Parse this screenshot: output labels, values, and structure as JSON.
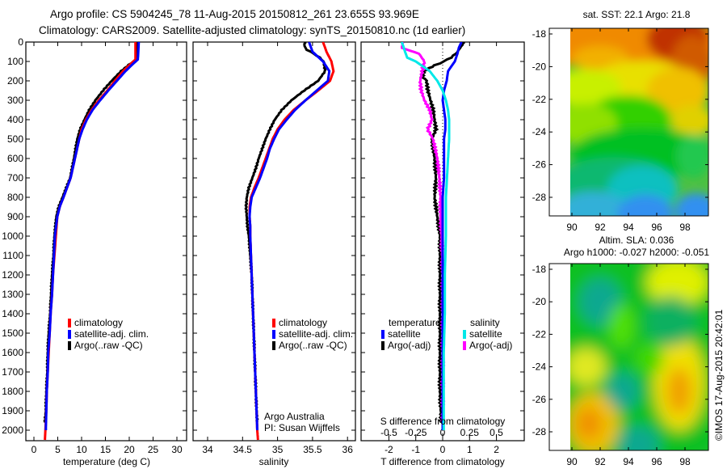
{
  "title": {
    "line1": "Argo profile: CS 5904245_78 11-Aug-2015 20150812_261 23.655S 93.969E",
    "line2": "Climatology: CARS2009. Satellite-adjusted climatology: synTS_20150810.nc (1d earlier)"
  },
  "colors": {
    "climatology": "#ff0000",
    "satellite_adj": "#0000ff",
    "argo": "#000000",
    "s_satellite": "#00e8e8",
    "s_argo": "#ff00ff"
  },
  "chart_data": [
    {
      "id": "temperature",
      "type": "line",
      "xlabel": "temperature (deg C)",
      "ylabel": "",
      "xlim": [
        -2.5,
        32
      ],
      "ylim": [
        2060,
        0
      ],
      "xticks": [
        0,
        5,
        10,
        15,
        20,
        25,
        30
      ],
      "yticks": [
        0,
        100,
        200,
        300,
        400,
        500,
        600,
        700,
        800,
        900,
        1000,
        1100,
        1200,
        1300,
        1400,
        1500,
        1600,
        1700,
        1800,
        1900,
        2000
      ],
      "legend": [
        "climatology",
        "satellite-adj. clim.",
        "Argo(..raw -QC)"
      ],
      "series": [
        {
          "name": "climatology",
          "color": "#ff0000",
          "depth": [
            0,
            50,
            90,
            110,
            150,
            200,
            250,
            300,
            350,
            400,
            450,
            500,
            600,
            700,
            800,
            850,
            900,
            1000,
            1100,
            1200,
            1300,
            1400,
            1500,
            1600,
            1700,
            1800,
            1900,
            2000,
            2050
          ],
          "values": [
            21.3,
            21.3,
            21.3,
            20.4,
            18.7,
            17.0,
            15.4,
            13.6,
            12.1,
            10.9,
            10.0,
            9.5,
            8.6,
            7.7,
            6.2,
            5.4,
            4.9,
            4.6,
            4.3,
            4.0,
            3.8,
            3.5,
            3.3,
            3.1,
            2.9,
            2.7,
            2.6,
            2.4,
            2.3
          ]
        },
        {
          "name": "satellite-adj. clim.",
          "color": "#0000ff",
          "depth": [
            0,
            50,
            90,
            110,
            150,
            200,
            250,
            300,
            350,
            400,
            450,
            500,
            600,
            700,
            800,
            850,
            900,
            1000,
            1100,
            1200,
            1300,
            1400,
            1500,
            1600,
            1700,
            1800,
            1900,
            2000
          ],
          "values": [
            22.0,
            21.9,
            21.8,
            20.9,
            19.2,
            17.4,
            15.6,
            13.9,
            12.3,
            11.1,
            10.2,
            9.5,
            8.6,
            7.7,
            6.2,
            5.4,
            4.9,
            4.4,
            4.2,
            4.0,
            3.8,
            3.5,
            3.3,
            3.0,
            2.9,
            2.7,
            2.6,
            2.5
          ]
        },
        {
          "name": "Argo(..raw -QC)",
          "color": "#000000",
          "depth": [
            0,
            50,
            90,
            110,
            150,
            200,
            250,
            300,
            350,
            400,
            450,
            500,
            600,
            700,
            800,
            850,
            900,
            1000,
            1100,
            1200,
            1300,
            1400,
            1500,
            1600,
            1700,
            1800,
            1900,
            1960
          ],
          "values": [
            21.7,
            21.6,
            21.5,
            20.3,
            18.3,
            16.3,
            14.5,
            12.9,
            11.6,
            10.6,
            9.7,
            9.1,
            8.4,
            7.6,
            6.0,
            5.2,
            4.7,
            4.3,
            4.1,
            3.8,
            3.6,
            3.4,
            3.1,
            2.9,
            2.8,
            2.6,
            2.5,
            2.3
          ]
        }
      ]
    },
    {
      "id": "salinity",
      "type": "line",
      "xlabel": "salinity",
      "xlim": [
        33.8,
        36.1
      ],
      "ylim": [
        2060,
        0
      ],
      "xticks": [
        34,
        34.5,
        35,
        35.5,
        36
      ],
      "xticklabels": [
        "34",
        "34.5",
        "35",
        "35.5",
        "36"
      ],
      "legend": [
        "climatology",
        "satellite-adj. clim.",
        "Argo(..raw -QC)"
      ],
      "annotation": [
        "Argo Australia",
        "PI: Susan Wijffels"
      ],
      "series": [
        {
          "name": "climatology",
          "color": "#ff0000",
          "depth": [
            0,
            50,
            100,
            150,
            200,
            250,
            300,
            350,
            400,
            450,
            500,
            550,
            600,
            650,
            700,
            750,
            800,
            850,
            900,
            950,
            1000,
            1100,
            1200,
            1300,
            1400,
            1500,
            1600,
            1700,
            1800,
            1900,
            2000,
            2050
          ],
          "values": [
            35.65,
            35.7,
            35.77,
            35.8,
            35.75,
            35.58,
            35.4,
            35.23,
            35.1,
            35.0,
            34.93,
            34.88,
            34.83,
            34.78,
            34.73,
            34.67,
            34.62,
            34.6,
            34.6,
            34.61,
            34.61,
            34.62,
            34.63,
            34.64,
            34.65,
            34.66,
            34.67,
            34.68,
            34.69,
            34.7,
            34.71,
            34.72
          ]
        },
        {
          "name": "satellite-adj. clim.",
          "color": "#0000ff",
          "depth": [
            0,
            50,
            100,
            150,
            200,
            250,
            300,
            350,
            400,
            450,
            500,
            550,
            600,
            650,
            700,
            750,
            800,
            850,
            900,
            950,
            1000,
            1100,
            1200,
            1300,
            1400,
            1500,
            1600,
            1700,
            1800,
            1900,
            2000
          ],
          "values": [
            35.45,
            35.5,
            35.65,
            35.74,
            35.72,
            35.56,
            35.4,
            35.25,
            35.13,
            35.02,
            34.95,
            34.89,
            34.85,
            34.8,
            34.75,
            34.69,
            34.63,
            34.61,
            34.6,
            34.61,
            34.61,
            34.62,
            34.63,
            34.64,
            34.65,
            34.66,
            34.67,
            34.68,
            34.69,
            34.7,
            34.71
          ]
        },
        {
          "name": "Argo(..raw -QC)",
          "color": "#000000",
          "depth": [
            0,
            20,
            40,
            60,
            80,
            100,
            150,
            200,
            250,
            300,
            350,
            400,
            450,
            500,
            550,
            600,
            650,
            700,
            750,
            800,
            850,
            900,
            950,
            1000,
            1100,
            1200,
            1300,
            1400,
            1500,
            1600,
            1700,
            1800,
            1900,
            1960
          ],
          "values": [
            35.4,
            35.38,
            35.42,
            35.52,
            35.6,
            35.66,
            35.68,
            35.58,
            35.38,
            35.2,
            35.06,
            34.96,
            34.89,
            34.83,
            34.78,
            34.73,
            34.69,
            34.64,
            34.59,
            34.56,
            34.55,
            34.56,
            34.57,
            34.59,
            34.61,
            34.63,
            34.64,
            34.65,
            34.66,
            34.67,
            34.68,
            34.69,
            34.7,
            34.71
          ]
        }
      ]
    },
    {
      "id": "difference",
      "type": "line",
      "xlabel": "T difference from climatology",
      "xlabel_top": "S difference from climatology",
      "xlim": [
        -3,
        3
      ],
      "ylim": [
        2060,
        0
      ],
      "xticks": [
        -2,
        -1,
        0,
        1,
        2
      ],
      "xticklabels": [
        "-2",
        "-1",
        "0",
        "1",
        "2"
      ],
      "sticks": [
        -0.5,
        -0.25,
        0,
        0.25,
        0.5
      ],
      "sticklabels": [
        "-0.5",
        "-0.25",
        "0",
        "0.25",
        "0.5"
      ],
      "legend_temperature": {
        "title": "temperature",
        "items": [
          "satellite",
          "Argo(-adj)"
        ]
      },
      "legend_salinity": {
        "title": "salinity",
        "items": [
          "satellite",
          "Argo(-adj)"
        ]
      },
      "series": [
        {
          "name": "temperature satellite",
          "color": "#0000ff",
          "unit": "T",
          "depth": [
            0,
            30,
            60,
            100,
            150,
            200,
            250,
            300,
            350,
            400,
            450,
            500,
            600,
            700,
            800,
            900,
            1000,
            1200,
            1400,
            1600,
            1800,
            2000
          ],
          "values": [
            0.7,
            0.6,
            0.55,
            0.45,
            0.2,
            0.15,
            0.05,
            0.0,
            0.05,
            0.1,
            0.1,
            0.05,
            0.05,
            0.05,
            0.0,
            0.0,
            0.0,
            0.0,
            0.0,
            0.0,
            0.0,
            0.0
          ]
        },
        {
          "name": "temperature Argo(-adj)",
          "color": "#000000",
          "unit": "T",
          "depth": [
            0,
            30,
            60,
            80,
            100,
            120,
            150,
            180,
            200,
            250,
            300,
            350,
            400,
            450,
            500,
            600,
            700,
            800,
            900,
            1000,
            1200,
            1400,
            1600,
            1800,
            1960
          ],
          "values": [
            0.8,
            0.65,
            0.5,
            0.3,
            0.05,
            -0.3,
            -0.7,
            -0.75,
            -0.6,
            -0.55,
            -0.45,
            -0.35,
            -0.3,
            -0.25,
            -0.4,
            -0.3,
            -0.25,
            -0.3,
            -0.2,
            -0.1,
            -0.1,
            -0.1,
            -0.1,
            -0.1,
            -0.05
          ]
        },
        {
          "name": "salinity satellite",
          "color": "#00e8e8",
          "unit": "S",
          "depth": [
            0,
            50,
            80,
            100,
            150,
            200,
            250,
            300,
            350,
            400,
            500,
            600,
            700,
            800,
            1000,
            1200,
            1400,
            1600,
            1800,
            2000
          ],
          "values": [
            -0.38,
            -0.35,
            -0.33,
            -0.25,
            -0.12,
            -0.05,
            0.0,
            0.03,
            0.05,
            0.06,
            0.06,
            0.05,
            0.04,
            0.03,
            0.03,
            0.02,
            0.02,
            0.01,
            0.01,
            0.01
          ]
        },
        {
          "name": "salinity Argo(-adj)",
          "color": "#ff00ff",
          "unit": "S",
          "depth": [
            0,
            30,
            60,
            100,
            150,
            200,
            250,
            300,
            350,
            400,
            450,
            500,
            600,
            700,
            800,
            900,
            1000,
            1200,
            1400,
            1600,
            1800,
            1960
          ],
          "values": [
            -0.37,
            -0.38,
            -0.22,
            -0.17,
            -0.19,
            -0.21,
            -0.2,
            -0.17,
            -0.12,
            -0.1,
            -0.14,
            -0.09,
            -0.05,
            -0.03,
            -0.02,
            -0.02,
            -0.01,
            0.0,
            0.0,
            0.0,
            0.0,
            0.0
          ]
        }
      ]
    },
    {
      "id": "sst-map",
      "type": "heatmap",
      "title": "sat. SST: 22.1 Argo: 21.8",
      "xlim": [
        88.5,
        99.8
      ],
      "ylim": [
        -29.6,
        -17.6
      ],
      "xticks": [
        90,
        92,
        94,
        96,
        98
      ],
      "yticks": [
        -18,
        -20,
        -22,
        -24,
        -26,
        -28
      ],
      "data_lon_range": [
        90,
        99.8
      ],
      "pattern": "warm (orange/red) in north, especially NE near 96-98E; cooling to green around -24 to -26; blue/cyan patches south of -27"
    },
    {
      "id": "sla-map",
      "type": "heatmap",
      "title_line1": "Altim. SLA: 0.036",
      "title_line2": "Argo h1000: -0.027 h2000: -0.051",
      "xlim": [
        88.5,
        99.8
      ],
      "ylim": [
        -29.6,
        -17.6
      ],
      "xticks": [
        90,
        92,
        94,
        96,
        98
      ],
      "yticks": [
        -18,
        -20,
        -22,
        -24,
        -26,
        -28
      ],
      "pattern": "mostly green; yellow/orange highs near (91.5E,-27.5S) and (97.5E,-25.5S); bluish-green lows near (92E,-20S), (93.5E,-25.5S), (94.5E,-28.8S)"
    }
  ],
  "footer": {
    "stamp": "©IMOS 17-Aug-2015 20:42:01"
  }
}
